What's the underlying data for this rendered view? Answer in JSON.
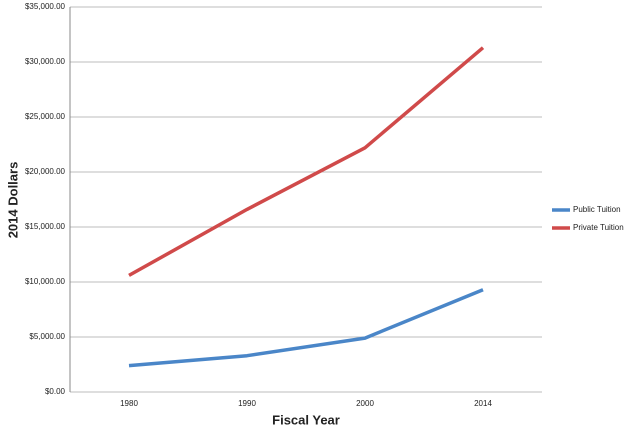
{
  "chart_data": {
    "type": "line",
    "x_label": "Fiscal Year",
    "y_label": "2014 Dollars",
    "categories": [
      "1980",
      "1990",
      "2000",
      "2014"
    ],
    "series": [
      {
        "name": "Public Tuition",
        "color": "#4a86c8",
        "values": [
          2400,
          3300,
          4900,
          9300
        ]
      },
      {
        "name": "Private Tuition",
        "color": "#d04a4a",
        "values": [
          10600,
          16600,
          22200,
          31300
        ]
      }
    ],
    "ylim": [
      0,
      35000
    ],
    "yticks": [
      {
        "value": 0,
        "label": "$0.00"
      },
      {
        "value": 5000,
        "label": "$5,000.00"
      },
      {
        "value": 10000,
        "label": "$10,000.00"
      },
      {
        "value": 15000,
        "label": "$15,000.00"
      },
      {
        "value": 20000,
        "label": "$20,000.00"
      },
      {
        "value": 25000,
        "label": "$25,000.00"
      },
      {
        "value": 30000,
        "label": "$30,000.00"
      },
      {
        "value": 35000,
        "label": "$35,000.00"
      }
    ],
    "grid": true,
    "legend": "right"
  }
}
